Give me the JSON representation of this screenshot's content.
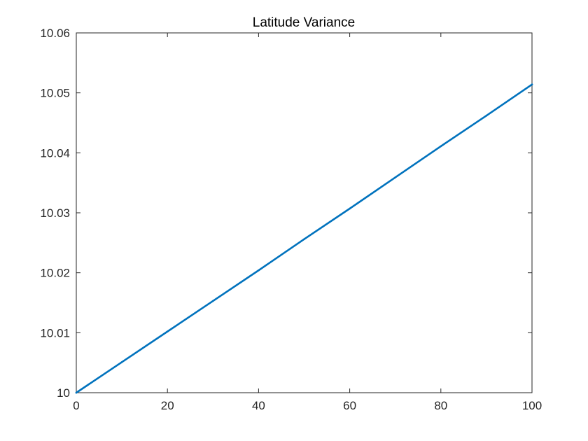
{
  "chart_data": {
    "type": "line",
    "title": "Latitude Variance",
    "xlabel": "",
    "ylabel": "",
    "xlim": [
      0,
      100
    ],
    "ylim": [
      10,
      10.06
    ],
    "x_ticks": [
      0,
      20,
      40,
      60,
      80,
      100
    ],
    "x_tick_labels": [
      "0",
      "20",
      "40",
      "60",
      "80",
      "100"
    ],
    "y_ticks": [
      10,
      10.01,
      10.02,
      10.03,
      10.04,
      10.05,
      10.06
    ],
    "y_tick_labels": [
      "10",
      "10.01",
      "10.02",
      "10.03",
      "10.04",
      "10.05",
      "10.06"
    ],
    "grid": false,
    "series": [
      {
        "color": "#0072BD",
        "x": [
          0,
          10,
          20,
          30,
          40,
          50,
          60,
          70,
          80,
          90,
          100
        ],
        "values": [
          10.0,
          10.0051,
          10.0102,
          10.0153,
          10.0204,
          10.0256,
          10.0307,
          10.0359,
          10.0411,
          10.0462,
          10.0514
        ]
      }
    ]
  }
}
